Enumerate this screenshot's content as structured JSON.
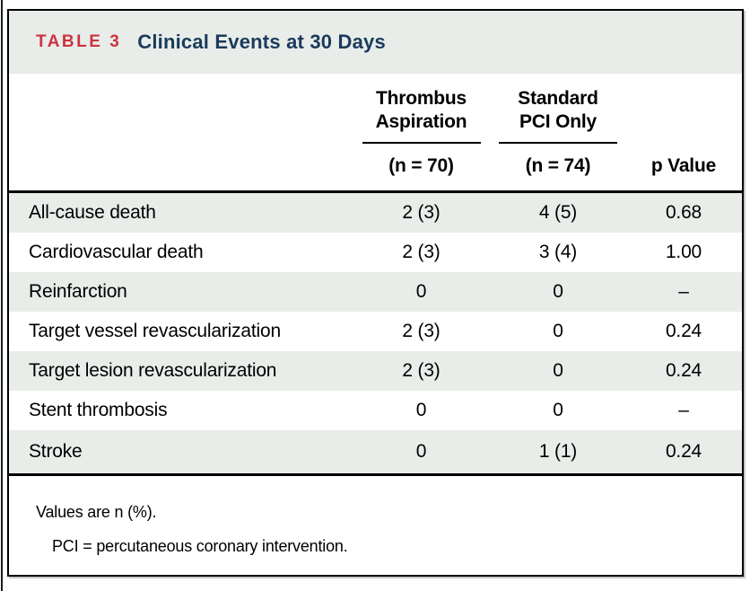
{
  "colors": {
    "tag_red": "#cd323f",
    "title_navy": "#1a3a5c",
    "band_background": "#e8ede9",
    "row_shade": "#e8ede9",
    "rule_black": "#000000"
  },
  "table": {
    "tag": "TABLE 3",
    "title": "Clinical Events at 30 Days",
    "columns": {
      "group1_line1": "Thrombus",
      "group1_line2": "Aspiration",
      "group1_n": "(n = 70)",
      "group2_line1": "Standard",
      "group2_line2": "PCI Only",
      "group2_n": "(n = 74)",
      "p_label": "p Value"
    },
    "rows": [
      {
        "label": "All-cause death",
        "thrombus_aspiration": "2 (3)",
        "standard_pci": "4 (5)",
        "p_value": "0.68"
      },
      {
        "label": "Cardiovascular death",
        "thrombus_aspiration": "2 (3)",
        "standard_pci": "3 (4)",
        "p_value": "1.00"
      },
      {
        "label": "Reinfarction",
        "thrombus_aspiration": "0",
        "standard_pci": "0",
        "p_value": "–"
      },
      {
        "label": "Target vessel revascularization",
        "thrombus_aspiration": "2 (3)",
        "standard_pci": "0",
        "p_value": "0.24"
      },
      {
        "label": "Target lesion revascularization",
        "thrombus_aspiration": "2 (3)",
        "standard_pci": "0",
        "p_value": "0.24"
      },
      {
        "label": "Stent thrombosis",
        "thrombus_aspiration": "0",
        "standard_pci": "0",
        "p_value": "–"
      },
      {
        "label": "Stroke",
        "thrombus_aspiration": "0",
        "standard_pci": "1 (1)",
        "p_value": "0.24"
      }
    ],
    "footnotes": {
      "line1": "Values are n (%).",
      "line2": "PCI = percutaneous coronary intervention."
    }
  }
}
